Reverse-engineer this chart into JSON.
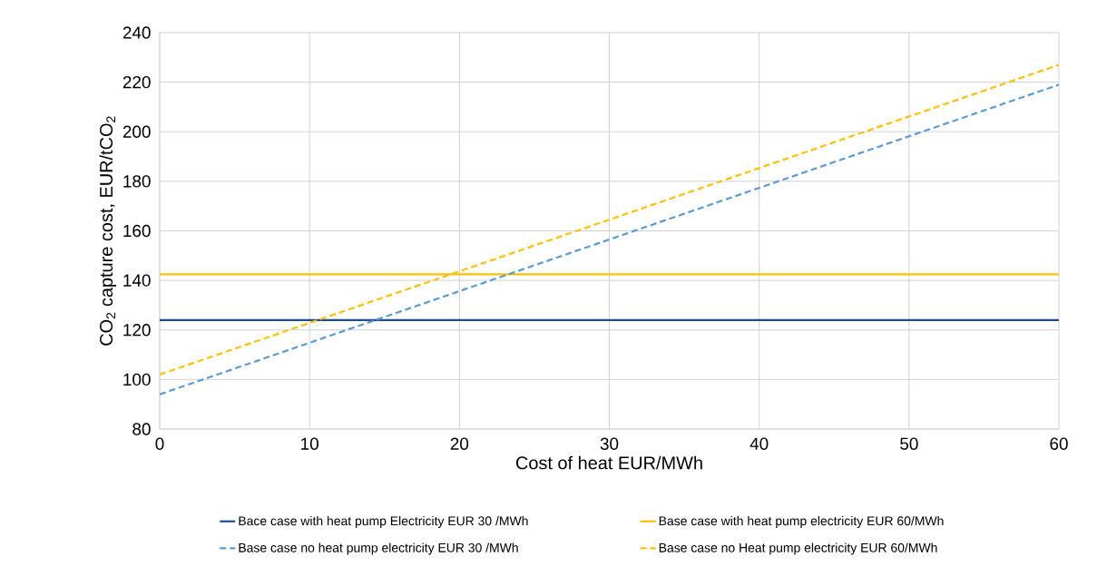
{
  "chart_data": {
    "type": "line",
    "xlabel": "Cost of heat EUR/MWh",
    "ylabel": "CO$_{2}$ capture cost, EUR/tCO$_{2}$",
    "xlim": [
      0,
      60
    ],
    "ylim": [
      80,
      240
    ],
    "xticks": [
      0,
      10,
      20,
      30,
      40,
      50,
      60
    ],
    "yticks": [
      80,
      100,
      120,
      140,
      160,
      180,
      200,
      220,
      240
    ],
    "grid": true,
    "legend": "bottom",
    "marker": "none",
    "x": [
      0,
      60
    ],
    "series": [
      {
        "name": "Bace case with heat pump Electricity  EUR 30 /MWh",
        "color": "#1f4e8c",
        "line_style": "solid",
        "values": [
          124,
          124
        ]
      },
      {
        "name": "Base case with heat pump electricity EUR 60/MWh",
        "color": "#ffc000",
        "line_style": "solid",
        "values": [
          142.5,
          142.5
        ]
      },
      {
        "name": "Base case no heat pump electricity EUR 30 /MWh",
        "color": "#5b9bd5",
        "line_style": "dashed",
        "values": [
          94,
          219
        ]
      },
      {
        "name": "Base case no Heat pump electricity EUR 60/MWh",
        "color": "#ffc000",
        "line_style": "dashed",
        "values": [
          102,
          227
        ]
      }
    ]
  }
}
